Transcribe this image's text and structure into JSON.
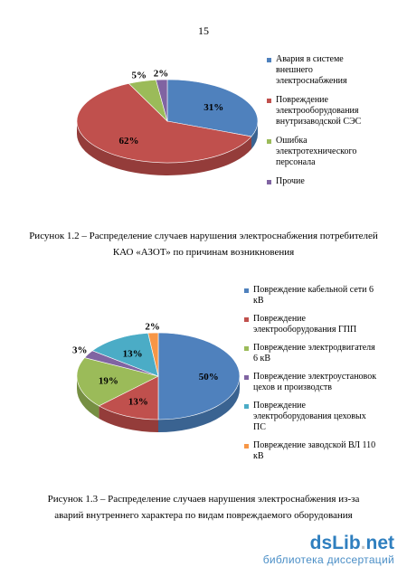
{
  "page_number": "15",
  "chart_data": [
    {
      "type": "pie",
      "style": "3d",
      "start_angle_deg": -90,
      "slices": [
        {
          "label": "Авария в системе внешнего электроснабжения",
          "value": 31,
          "data_label": "31%",
          "color": "#4f81bd",
          "side": "#3a6391"
        },
        {
          "label": "Повреждение электрооборудования внутризаводской СЭС",
          "value": 62,
          "data_label": "62%",
          "color": "#c0504d",
          "side": "#943c3a"
        },
        {
          "label": "Ошибка электротехнического персонала",
          "value": 5,
          "data_label": "5%",
          "color": "#9bbb59",
          "side": "#768f43"
        },
        {
          "label": "Прочие",
          "value": 2,
          "data_label": "2%",
          "color": "#8064a2",
          "side": "#624c7d"
        }
      ],
      "legend_lines": [
        [
          "Авария в системе",
          "внешнего",
          "электроснабжения"
        ],
        [
          "Повреждение",
          "электрооборудования",
          "внутризаводской СЭС"
        ],
        [
          "Ошибка",
          "электротехнического",
          "персонала"
        ],
        [
          "Прочие"
        ]
      ],
      "caption": [
        "Рисунок 1.2 – Распределение случаев нарушения электроснабжения потребителей",
        "КАО «АЗОТ» по причинам возникновения"
      ]
    },
    {
      "type": "pie",
      "style": "3d",
      "start_angle_deg": -90,
      "slices": [
        {
          "label": "Повреждение кабельной сети 6 кВ",
          "value": 50,
          "data_label": "50%",
          "color": "#4f81bd",
          "side": "#3a6391"
        },
        {
          "label": "Повреждение электрооборудования ГПП",
          "value": 13,
          "data_label": "13%",
          "color": "#c0504d",
          "side": "#943c3a"
        },
        {
          "label": "Повреждение электродвигателя 6 кВ",
          "value": 19,
          "data_label": "19%",
          "color": "#9bbb59",
          "side": "#768f43"
        },
        {
          "label": "Повреждение электроустановок цехов и производств",
          "value": 3,
          "data_label": "3%",
          "color": "#8064a2",
          "side": "#624c7d"
        },
        {
          "label": "Повреждение электроборудования цеховых ПС",
          "value": 13,
          "data_label": "13%",
          "color": "#4bacc6",
          "side": "#3a8599"
        },
        {
          "label": "Повреждение заводской ВЛ 110 кВ",
          "value": 2,
          "data_label": "2%",
          "color": "#f79646",
          "side": "#c07536"
        }
      ],
      "legend_lines": [
        [
          "Повреждение кабельной сети 6",
          "кВ"
        ],
        [
          "Повреждение",
          "электрооборудования ГПП"
        ],
        [
          "Повреждение электродвигателя",
          "6 кВ"
        ],
        [
          "Повреждение электроустановок",
          "цехов и производств"
        ],
        [
          "Повреждение",
          "электроборудования цеховых",
          "ПС"
        ],
        [
          "Повреждение заводской ВЛ 110",
          "кВ"
        ]
      ],
      "caption": [
        "Рисунок 1.3 – Распределение случаев нарушения электроснабжения из-за",
        "аварий внутреннего характера по видам повреждаемого оборудования"
      ]
    }
  ],
  "watermark": {
    "site": "dsLib",
    "tld": "net",
    "subtitle": "библиотека диссертаций"
  }
}
